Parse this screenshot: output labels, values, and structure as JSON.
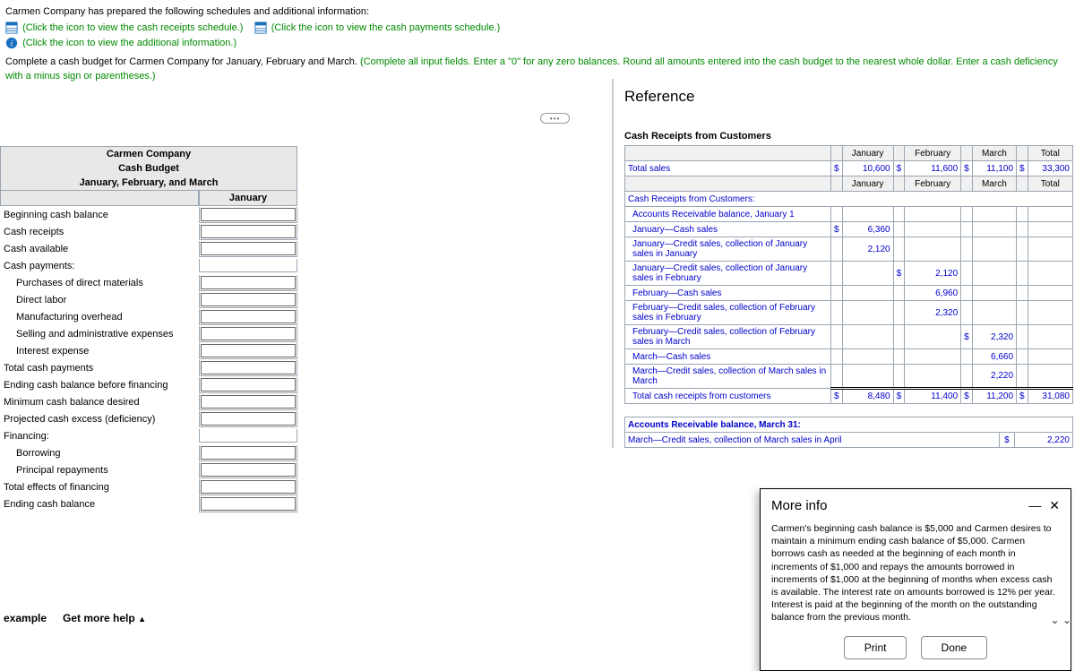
{
  "instructions": {
    "line1": "Carmen Company has prepared the following schedules and additional information:",
    "link_receipts": "(Click the icon to view the cash receipts schedule.)",
    "link_payments": "(Click the icon to view the cash payments schedule.)",
    "link_additional": "(Click the icon to view the additional information.)",
    "task_prefix": "Complete a cash budget for Carmen Company for January, February and March. ",
    "task_green": "(Complete all input fields. Enter a \"0\" for any zero balances. Round all amounts entered into the cash budget to the nearest whole dollar. Enter a cash deficiency with a minus sign or parentheses.)"
  },
  "budget": {
    "company": "Carmen Company",
    "title": "Cash Budget",
    "period": "January, February, and March",
    "col": "January",
    "rows": [
      {
        "label": "Beginning cash balance",
        "indent": false,
        "input": true
      },
      {
        "label": "Cash receipts",
        "indent": false,
        "input": true
      },
      {
        "label": "Cash available",
        "indent": false,
        "input": true
      },
      {
        "label": "Cash payments:",
        "indent": false,
        "input": false
      },
      {
        "label": "Purchases of direct materials",
        "indent": true,
        "input": true
      },
      {
        "label": "Direct labor",
        "indent": true,
        "input": true
      },
      {
        "label": "Manufacturing overhead",
        "indent": true,
        "input": true
      },
      {
        "label": "Selling and administrative expenses",
        "indent": true,
        "input": true
      },
      {
        "label": "Interest expense",
        "indent": true,
        "input": true
      },
      {
        "label": "Total cash payments",
        "indent": false,
        "input": true
      },
      {
        "label": "Ending cash balance before financing",
        "indent": false,
        "input": true
      },
      {
        "label": "Minimum cash balance desired",
        "indent": false,
        "input": true
      },
      {
        "label": "Projected cash excess (deficiency)",
        "indent": false,
        "input": true
      },
      {
        "label": "Financing:",
        "indent": false,
        "input": false
      },
      {
        "label": "Borrowing",
        "indent": true,
        "input": true
      },
      {
        "label": "Principal repayments",
        "indent": true,
        "input": true
      },
      {
        "label": "Total effects of financing",
        "indent": false,
        "input": true
      },
      {
        "label": "Ending cash balance",
        "indent": false,
        "input": true
      }
    ]
  },
  "reference": {
    "title": "Reference",
    "section1": "Cash Receipts from Customers",
    "months": [
      "January",
      "February",
      "March",
      "Total"
    ],
    "total_sales_label": "Total sales",
    "total_sales": {
      "jan": "10,600",
      "feb": "11,600",
      "mar": "11,100",
      "tot": "33,300"
    },
    "subheader": "Cash Receipts from Customers:",
    "detail_rows": [
      {
        "label": "Accounts Receivable balance, January 1",
        "jan": "",
        "feb": "",
        "mar": "",
        "indent": true
      },
      {
        "label": "January—Cash sales",
        "jan": "6,360",
        "feb": "",
        "mar": "",
        "indent": true,
        "jsym": true
      },
      {
        "label": "January—Credit sales, collection of January sales in January",
        "jan": "2,120",
        "feb": "",
        "mar": "",
        "indent": true
      },
      {
        "label": "January—Credit sales, collection of January sales in February",
        "jan": "",
        "feb": "2,120",
        "mar": "",
        "indent": true,
        "fsym": true
      },
      {
        "label": "February—Cash sales",
        "jan": "",
        "feb": "6,960",
        "mar": "",
        "indent": true
      },
      {
        "label": "February—Credit sales, collection of February sales in February",
        "jan": "",
        "feb": "2,320",
        "mar": "",
        "indent": true
      },
      {
        "label": "February—Credit sales, collection of February sales in March",
        "jan": "",
        "feb": "",
        "mar": "2,320",
        "indent": true,
        "msym": true
      },
      {
        "label": "March—Cash sales",
        "jan": "",
        "feb": "",
        "mar": "6,660",
        "indent": true
      },
      {
        "label": "March—Credit sales, collection of March sales in March",
        "jan": "",
        "feb": "",
        "mar": "2,220",
        "indent": true
      }
    ],
    "total_receipts_label": "Total cash receipts from customers",
    "total_receipts": {
      "jan": "8,480",
      "feb": "11,400",
      "mar": "11,200",
      "tot": "31,080"
    },
    "ar_balance_label": "Accounts Receivable balance, March 31:",
    "ar_row": {
      "label": "March—Credit sales, collection of March sales in April",
      "val": "2,220"
    }
  },
  "more_info": {
    "title": "More info",
    "body": "Carmen's beginning cash balance is $5,000 and Carmen desires to maintain a minimum ending cash balance of $5,000. Carmen borrows cash as needed at the beginning of each month in increments of $1,000 and repays the amounts borrowed in increments of $1,000 at the beginning of months when excess cash is available. The interest rate on amounts borrowed is 12% per year. Interest is paid at the beginning of the month on the outstanding balance from the previous month.",
    "print": "Print",
    "done": "Done"
  },
  "footer": {
    "example": "example",
    "help": "Get more help"
  },
  "colors": {
    "green": "#008a00",
    "blue": "#0000cc",
    "grid": "#9aa6b2",
    "hdr_bg": "#e8e8e8"
  }
}
